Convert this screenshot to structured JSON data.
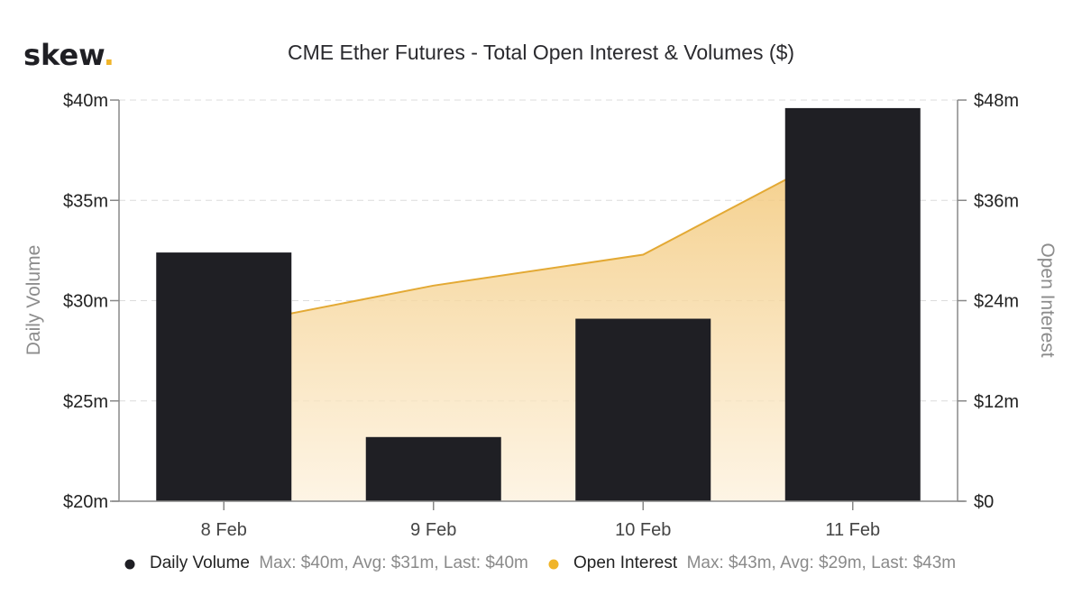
{
  "logo": {
    "text": "skew",
    "dot": "."
  },
  "chart_data": {
    "type": "bar",
    "title": "CME Ether Futures - Total Open Interest & Volumes ($)",
    "categories": [
      "8 Feb",
      "9 Feb",
      "10 Feb",
      "11 Feb"
    ],
    "y_left": {
      "label": "Daily Volume",
      "min": 20,
      "max": 40,
      "ticks": [
        20,
        25,
        30,
        35,
        40
      ],
      "tick_labels": [
        "$20m",
        "$25m",
        "$30m",
        "$35m",
        "$40m"
      ]
    },
    "y_right": {
      "label": "Open Interest",
      "min": 0,
      "max": 48,
      "ticks": [
        0,
        12,
        24,
        36,
        48
      ],
      "tick_labels": [
        "$0",
        "$12m",
        "$24m",
        "$36m",
        "$48m"
      ]
    },
    "series": [
      {
        "name": "Daily Volume",
        "type": "bar",
        "axis": "left",
        "values": [
          32.4,
          23.2,
          29.1,
          39.6
        ]
      },
      {
        "name": "Open Interest",
        "type": "area",
        "axis": "right",
        "values": [
          20.9,
          25.8,
          29.5,
          42.7
        ]
      }
    ],
    "colors": {
      "bar": "#1f1f24",
      "area_line": "#e3a934",
      "area_fill_top": "#f3c878",
      "area_fill_bottom": "#fdf1dc",
      "grid": "#dcdcdc",
      "axis": "#888888"
    },
    "legend": [
      {
        "name": "Daily Volume",
        "stats": "Max: $40m, Avg: $31m, Last: $40m",
        "color": "#1f1f24"
      },
      {
        "name": "Open Interest",
        "stats": "Max: $43m, Avg: $29m, Last: $43m",
        "color": "#f0b429"
      }
    ],
    "grid": true
  }
}
